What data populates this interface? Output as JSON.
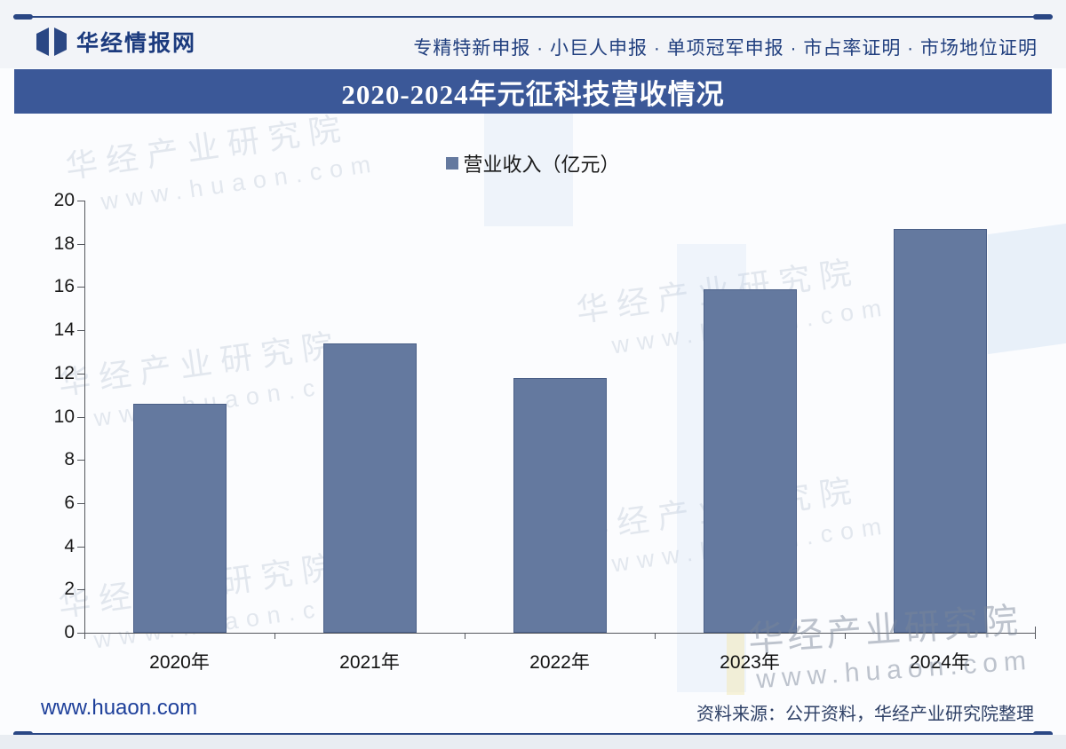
{
  "header": {
    "brand": "华经情报网",
    "slogan": "专精特新申报 · 小巨人申报 · 单项冠军申报 · 市占率证明 · 市场地位证明"
  },
  "title_bar": {
    "title": "2020-2024年元征科技营收情况"
  },
  "legend": {
    "label": "营业收入（亿元）"
  },
  "chart_data": {
    "type": "bar",
    "title": "2020-2024年元征科技营收情况",
    "categories": [
      "2020年",
      "2021年",
      "2022年",
      "2023年",
      "2024年"
    ],
    "series": [
      {
        "name": "营业收入（亿元）",
        "values": [
          10.6,
          13.4,
          11.8,
          15.9,
          18.7
        ]
      }
    ],
    "xlabel": "",
    "ylabel": "",
    "ylim": [
      0,
      20
    ],
    "ytick_step": 2,
    "grid": false,
    "legend_position": "top-center",
    "bar_color": "#64799F",
    "bar_border_color": "#4A5F87"
  },
  "watermark": {
    "line1": "华经产业研究院",
    "line2": "www.huaon.com"
  },
  "footer": {
    "site": "www.huaon.com",
    "source": "资料来源：公开资料，华经产业研究院整理"
  },
  "colors": {
    "accent": "#2A4784",
    "title_bar_bg": "#3B5898",
    "bar_fill": "#64799F"
  }
}
